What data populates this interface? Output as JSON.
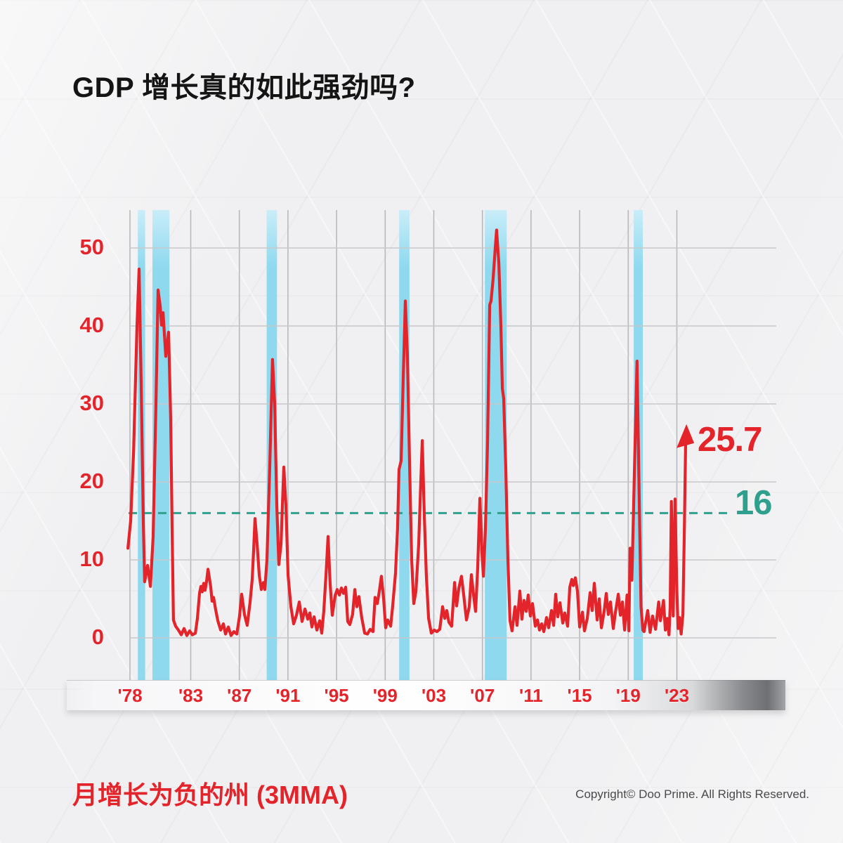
{
  "page": {
    "title": "GDP 增长真的如此强劲吗?"
  },
  "footer": {
    "caption": "月增长为负的州 (3MMA)",
    "copyright": "Copyright© Doo Prime. All Rights Reserved."
  },
  "colors": {
    "series_red": "#e3242b",
    "reference_teal": "#2fa08d",
    "recession_band_blue": "#8fd9ef",
    "recession_band_blue_light": "#c9edf8",
    "grid_horizontal": "#c7c8cb",
    "grid_vertical": "#b8b9bc",
    "title_text": "#141414",
    "copyright_text": "#4a4a4b"
  },
  "chart_data": {
    "type": "line",
    "title": "GDP 增长真的如此强劲吗?",
    "xlabel": "",
    "ylabel": "",
    "grid": true,
    "xlim": [
      1977.8,
      2023.8
    ],
    "ylim": [
      0,
      55
    ],
    "y_ticks": [
      0,
      10,
      20,
      30,
      40,
      50
    ],
    "x_ticks": [
      {
        "label": "'78",
        "year": 1978
      },
      {
        "label": "'83",
        "year": 1983
      },
      {
        "label": "'87",
        "year": 1987
      },
      {
        "label": "'91",
        "year": 1991
      },
      {
        "label": "'95",
        "year": 1995
      },
      {
        "label": "'99",
        "year": 1999
      },
      {
        "label": "'03",
        "year": 2003
      },
      {
        "label": "'07",
        "year": 2007
      },
      {
        "label": "'11",
        "year": 2011
      },
      {
        "label": "'15",
        "year": 2015
      },
      {
        "label": "'19",
        "year": 2019
      },
      {
        "label": "'23",
        "year": 2023
      }
    ],
    "reference_line": {
      "value": 16,
      "label": "16",
      "style": "dashed",
      "color": "#2fa08d"
    },
    "latest_annotation": {
      "value": 25.7,
      "label": "25.7",
      "marker": "arrow-up",
      "color": "#e3242b"
    },
    "recession_bands": [
      [
        1978.65,
        1979.25
      ],
      [
        1979.85,
        1981.25
      ],
      [
        1989.25,
        1990.1
      ],
      [
        2000.15,
        2001.0
      ],
      [
        2007.2,
        2009.0
      ],
      [
        2019.45,
        2020.2
      ]
    ],
    "series": [
      {
        "name": "月增长为负的州 (3MMA)",
        "color": "#e3242b",
        "points": [
          [
            1977.83,
            11.5
          ],
          [
            1978.06,
            15
          ],
          [
            1978.3,
            24
          ],
          [
            1978.58,
            40
          ],
          [
            1978.75,
            47.3
          ],
          [
            1978.92,
            33
          ],
          [
            1979.1,
            15
          ],
          [
            1979.21,
            7.2
          ],
          [
            1979.45,
            9.3
          ],
          [
            1979.56,
            8
          ],
          [
            1979.68,
            6.6
          ],
          [
            1979.91,
            13
          ],
          [
            1980.14,
            30
          ],
          [
            1980.31,
            44.6
          ],
          [
            1980.49,
            42.5
          ],
          [
            1980.6,
            40.1
          ],
          [
            1980.72,
            41.7
          ],
          [
            1980.95,
            36.1
          ],
          [
            1981.18,
            39.2
          ],
          [
            1981.35,
            28
          ],
          [
            1981.47,
            14
          ],
          [
            1981.58,
            2.3
          ],
          [
            1981.76,
            1.5
          ],
          [
            1981.99,
            1
          ],
          [
            1982.22,
            0.4
          ],
          [
            1982.45,
            1.2
          ],
          [
            1982.68,
            0.3
          ],
          [
            1982.91,
            0.9
          ],
          [
            1983.14,
            0.4
          ],
          [
            1983.38,
            0.6
          ],
          [
            1983.55,
            2.5
          ],
          [
            1983.72,
            5.7
          ],
          [
            1983.84,
            6.6
          ],
          [
            1983.95,
            5.9
          ],
          [
            1984.07,
            7
          ],
          [
            1984.18,
            6.1
          ],
          [
            1984.3,
            7.2
          ],
          [
            1984.42,
            8.8
          ],
          [
            1984.53,
            7.7
          ],
          [
            1984.65,
            6.5
          ],
          [
            1984.76,
            4.7
          ],
          [
            1984.88,
            5.2
          ],
          [
            1985.05,
            3.6
          ],
          [
            1985.23,
            2.2
          ],
          [
            1985.46,
            1
          ],
          [
            1985.69,
            1.8
          ],
          [
            1985.86,
            0.5
          ],
          [
            1986.09,
            1.4
          ],
          [
            1986.32,
            0.3
          ],
          [
            1986.55,
            0.8
          ],
          [
            1986.79,
            0.5
          ],
          [
            1987.02,
            2.8
          ],
          [
            1987.19,
            5.6
          ],
          [
            1987.42,
            3
          ],
          [
            1987.65,
            1.6
          ],
          [
            1987.88,
            4.5
          ],
          [
            1988.06,
            7.5
          ],
          [
            1988.17,
            11
          ],
          [
            1988.29,
            15.3
          ],
          [
            1988.46,
            12
          ],
          [
            1988.64,
            8
          ],
          [
            1988.81,
            6.2
          ],
          [
            1988.98,
            7.1
          ],
          [
            1989.1,
            6.2
          ],
          [
            1989.27,
            10
          ],
          [
            1989.5,
            22
          ],
          [
            1989.73,
            35.7
          ],
          [
            1989.91,
            30
          ],
          [
            1990.08,
            17
          ],
          [
            1990.25,
            9.4
          ],
          [
            1990.43,
            12
          ],
          [
            1990.66,
            21.9
          ],
          [
            1990.83,
            17
          ],
          [
            1991.01,
            8
          ],
          [
            1991.24,
            4
          ],
          [
            1991.47,
            1.8
          ],
          [
            1991.7,
            2.9
          ],
          [
            1991.93,
            4.6
          ],
          [
            1992.16,
            2.1
          ],
          [
            1992.4,
            3.7
          ],
          [
            1992.63,
            2.4
          ],
          [
            1992.8,
            3.2
          ],
          [
            1992.97,
            1.4
          ],
          [
            1993.15,
            2.7
          ],
          [
            1993.38,
            1
          ],
          [
            1993.61,
            2.2
          ],
          [
            1993.78,
            0.6
          ],
          [
            1993.95,
            3.4
          ],
          [
            1994.13,
            8
          ],
          [
            1994.3,
            13
          ],
          [
            1994.47,
            7
          ],
          [
            1994.65,
            2.9
          ],
          [
            1994.88,
            5.4
          ],
          [
            1995.05,
            6.2
          ],
          [
            1995.23,
            5.5
          ],
          [
            1995.4,
            6.4
          ],
          [
            1995.57,
            5.7
          ],
          [
            1995.75,
            6.5
          ],
          [
            1995.92,
            2.1
          ],
          [
            1996.09,
            1.7
          ],
          [
            1996.32,
            3
          ],
          [
            1996.5,
            6.2
          ],
          [
            1996.67,
            4
          ],
          [
            1996.84,
            5.3
          ],
          [
            1997.07,
            2.6
          ],
          [
            1997.31,
            0.6
          ],
          [
            1997.54,
            0.5
          ],
          [
            1997.77,
            1.1
          ],
          [
            1998,
            0.8
          ],
          [
            1998.17,
            5.2
          ],
          [
            1998.35,
            4.4
          ],
          [
            1998.52,
            6
          ],
          [
            1998.69,
            7.9
          ],
          [
            1998.87,
            5
          ],
          [
            1999.04,
            1.3
          ],
          [
            1999.21,
            2.3
          ],
          [
            1999.45,
            1.5
          ],
          [
            1999.62,
            4.1
          ],
          [
            1999.85,
            8.3
          ],
          [
            2000.02,
            14
          ],
          [
            2000.14,
            21.6
          ],
          [
            2000.31,
            22.7
          ],
          [
            2000.48,
            33
          ],
          [
            2000.66,
            43.2
          ],
          [
            2000.83,
            36
          ],
          [
            2001.01,
            22
          ],
          [
            2001.18,
            10
          ],
          [
            2001.35,
            4.4
          ],
          [
            2001.53,
            6
          ],
          [
            2001.76,
            12
          ],
          [
            2001.93,
            20
          ],
          [
            2002.05,
            25.3
          ],
          [
            2002.22,
            15.7
          ],
          [
            2002.39,
            8
          ],
          [
            2002.57,
            2.5
          ],
          [
            2002.8,
            0.6
          ],
          [
            2003.03,
            1
          ],
          [
            2003.26,
            0.8
          ],
          [
            2003.49,
            1.1
          ],
          [
            2003.72,
            4
          ],
          [
            2003.9,
            2.5
          ],
          [
            2004.07,
            3.5
          ],
          [
            2004.24,
            2
          ],
          [
            2004.47,
            1.5
          ],
          [
            2004.71,
            7.1
          ],
          [
            2004.88,
            4.1
          ],
          [
            2005.05,
            6.3
          ],
          [
            2005.28,
            7.9
          ],
          [
            2005.46,
            5.5
          ],
          [
            2005.69,
            2.3
          ],
          [
            2005.92,
            4
          ],
          [
            2006.09,
            8.1
          ],
          [
            2006.27,
            5.5
          ],
          [
            2006.44,
            3.4
          ],
          [
            2006.61,
            9
          ],
          [
            2006.79,
            17.9
          ],
          [
            2006.96,
            11
          ],
          [
            2007.08,
            7.9
          ],
          [
            2007.25,
            14
          ],
          [
            2007.42,
            25
          ],
          [
            2007.6,
            42.7
          ],
          [
            2007.71,
            43.2
          ],
          [
            2007.88,
            46
          ],
          [
            2008.06,
            50
          ],
          [
            2008.17,
            52.3
          ],
          [
            2008.35,
            48
          ],
          [
            2008.52,
            40
          ],
          [
            2008.64,
            32
          ],
          [
            2008.75,
            30.7
          ],
          [
            2008.92,
            22
          ],
          [
            2009.1,
            10
          ],
          [
            2009.27,
            2.2
          ],
          [
            2009.44,
            0.9
          ],
          [
            2009.68,
            4
          ],
          [
            2009.85,
            1.6
          ],
          [
            2010.08,
            6
          ],
          [
            2010.25,
            2.4
          ],
          [
            2010.43,
            4.8
          ],
          [
            2010.6,
            3.4
          ],
          [
            2010.77,
            5.5
          ],
          [
            2010.95,
            2.8
          ],
          [
            2011.12,
            4.4
          ],
          [
            2011.35,
            1.5
          ],
          [
            2011.53,
            2.3
          ],
          [
            2011.7,
            1
          ],
          [
            2011.87,
            1.8
          ],
          [
            2012.05,
            0.8
          ],
          [
            2012.28,
            2.6
          ],
          [
            2012.45,
            1.3
          ],
          [
            2012.68,
            3.5
          ],
          [
            2012.86,
            1.6
          ],
          [
            2013.03,
            5.6
          ],
          [
            2013.2,
            2.7
          ],
          [
            2013.38,
            4.5
          ],
          [
            2013.61,
            1.9
          ],
          [
            2013.78,
            3.2
          ],
          [
            2014.01,
            1.5
          ],
          [
            2014.19,
            6.5
          ],
          [
            2014.36,
            7.5
          ],
          [
            2014.48,
            6.7
          ],
          [
            2014.65,
            7.7
          ],
          [
            2014.82,
            6
          ],
          [
            2015,
            1.4
          ],
          [
            2015.23,
            3.3
          ],
          [
            2015.4,
            0.9
          ],
          [
            2015.63,
            2.5
          ],
          [
            2015.86,
            5.8
          ],
          [
            2016.03,
            3.5
          ],
          [
            2016.21,
            7
          ],
          [
            2016.44,
            2.3
          ],
          [
            2016.61,
            5
          ],
          [
            2016.79,
            1.3
          ],
          [
            2017.02,
            3.4
          ],
          [
            2017.19,
            5.7
          ],
          [
            2017.36,
            3
          ],
          [
            2017.54,
            4.6
          ],
          [
            2017.77,
            1.2
          ],
          [
            2017.95,
            3.3
          ],
          [
            2018.18,
            5.6
          ],
          [
            2018.35,
            2.9
          ],
          [
            2018.52,
            4.6
          ],
          [
            2018.7,
            1
          ],
          [
            2018.9,
            5.5
          ],
          [
            2019.05,
            0.9
          ],
          [
            2019.15,
            11.5
          ],
          [
            2019.3,
            7.4
          ],
          [
            2019.5,
            21
          ],
          [
            2019.72,
            35.5
          ],
          [
            2019.9,
            18
          ],
          [
            2020.05,
            4
          ],
          [
            2020.2,
            1
          ],
          [
            2020.3,
            0.8
          ],
          [
            2020.6,
            3.5
          ],
          [
            2020.8,
            0.7
          ],
          [
            2021,
            2.8
          ],
          [
            2021.25,
            1.1
          ],
          [
            2021.5,
            4.6
          ],
          [
            2021.65,
            2.2
          ],
          [
            2021.9,
            4.8
          ],
          [
            2022.05,
            1
          ],
          [
            2022.2,
            2.5
          ],
          [
            2022.35,
            0.4
          ],
          [
            2022.45,
            4
          ],
          [
            2022.55,
            17.5
          ],
          [
            2022.7,
            2.8
          ],
          [
            2022.85,
            17.8
          ],
          [
            2023,
            6
          ],
          [
            2023.1,
            1.2
          ],
          [
            2023.22,
            2.6
          ],
          [
            2023.35,
            0.5
          ],
          [
            2023.5,
            3
          ],
          [
            2023.62,
            14
          ],
          [
            2023.73,
            25.7
          ]
        ]
      }
    ]
  }
}
